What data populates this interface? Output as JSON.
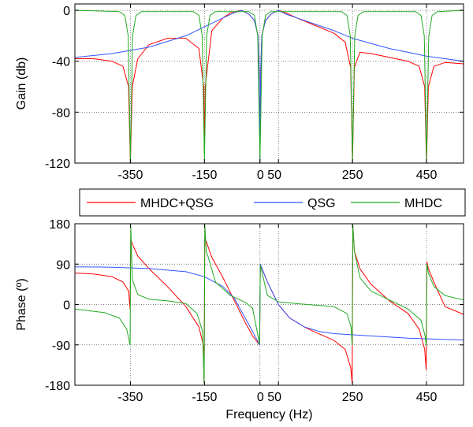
{
  "chart_data": [
    {
      "type": "line",
      "ylabel": "Gain (db)",
      "xlabel": "",
      "xlim": [
        -500,
        550
      ],
      "ylim": [
        -120,
        5
      ],
      "xticks": [
        -350,
        -150,
        0,
        50,
        250,
        450
      ],
      "xtick_labels": [
        "-350",
        "-150",
        "0 50",
        "",
        "250",
        "450"
      ],
      "yticks": [
        0,
        -40,
        -80,
        -120
      ],
      "ytick_labels": [
        "0",
        "-40",
        "-80",
        "-120"
      ],
      "grid": true,
      "series": [
        {
          "name": "MHDC+QSG",
          "color": "#ff0000",
          "x": [
            -500,
            -450,
            -400,
            -370,
            -355,
            -350,
            -345,
            -330,
            -300,
            -250,
            -200,
            -165,
            -152,
            -150,
            -148,
            -130,
            -100,
            -80,
            -50,
            -30,
            -15,
            -5,
            -2,
            0,
            2,
            5,
            15,
            30,
            50,
            70,
            100,
            150,
            200,
            230,
            245,
            250,
            255,
            270,
            300,
            350,
            400,
            430,
            445,
            450,
            455,
            470,
            500,
            550
          ],
          "y": [
            -38,
            -38,
            -40,
            -44,
            -60,
            -120,
            -60,
            -38,
            -27,
            -22,
            -22,
            -30,
            -60,
            -110,
            -60,
            -16,
            -6,
            -2,
            0,
            -3,
            -8,
            -20,
            -48,
            -120,
            -48,
            -20,
            -8,
            -3,
            0,
            -2,
            -6,
            -12,
            -18,
            -25,
            -45,
            -120,
            -45,
            -33,
            -34,
            -37,
            -40,
            -44,
            -60,
            -120,
            -60,
            -44,
            -41,
            -42
          ]
        },
        {
          "name": "QSG",
          "color": "#3355ff",
          "x": [
            -500,
            -400,
            -300,
            -200,
            -150,
            -100,
            -70,
            -50,
            -30,
            -15,
            -5,
            -2,
            0,
            2,
            5,
            15,
            30,
            50,
            70,
            100,
            150,
            200,
            250,
            300,
            350,
            400,
            450,
            500,
            550
          ],
          "y": [
            -37,
            -34,
            -29,
            -20,
            -13,
            -6,
            -2,
            0,
            -3,
            -8,
            -20,
            -48,
            -120,
            -48,
            -20,
            -8,
            -3,
            0,
            -3,
            -6,
            -11,
            -16,
            -22,
            -26,
            -30,
            -33,
            -36,
            -38,
            -40
          ]
        },
        {
          "name": "MHDC",
          "color": "#22aa22",
          "x": [
            -500,
            -380,
            -365,
            -356,
            -350,
            -344,
            -335,
            -320,
            -180,
            -165,
            -156,
            -150,
            -144,
            -135,
            -120,
            -30,
            -15,
            -6,
            0,
            6,
            15,
            30,
            220,
            235,
            244,
            250,
            256,
            265,
            280,
            420,
            435,
            444,
            450,
            456,
            465,
            480,
            550
          ],
          "y": [
            0,
            -1,
            -4,
            -20,
            -118,
            -20,
            -4,
            -1,
            -1,
            -4,
            -20,
            -118,
            -20,
            -4,
            -1,
            -1,
            -4,
            -20,
            -118,
            -20,
            -4,
            -1,
            -1,
            -4,
            -20,
            -118,
            -20,
            -4,
            -1,
            -1,
            -4,
            -20,
            -118,
            -20,
            -4,
            -1,
            0
          ]
        }
      ]
    },
    {
      "type": "line",
      "ylabel": "Phase (º)",
      "xlabel": "Frequency (Hz)",
      "xlim": [
        -500,
        550
      ],
      "ylim": [
        -180,
        180
      ],
      "xticks": [
        -350,
        -150,
        0,
        50,
        250,
        450
      ],
      "xtick_labels": [
        "-350",
        "-150",
        "0 50",
        "",
        "250",
        "450"
      ],
      "yticks": [
        180,
        90,
        0,
        -90,
        -180
      ],
      "ytick_labels": [
        "180",
        "90",
        "0",
        "-90",
        "-180"
      ],
      "grid": true,
      "series": [
        {
          "name": "MHDC+QSG",
          "color": "#ff0000",
          "x": [
            -500,
            -450,
            -400,
            -370,
            -355,
            -351,
            -349,
            -345,
            -330,
            -300,
            -250,
            -200,
            -165,
            -153,
            -151,
            -149,
            -145,
            -130,
            -100,
            -70,
            -40,
            -20,
            -1,
            1,
            20,
            50,
            80,
            120,
            150,
            200,
            230,
            245,
            249,
            251,
            255,
            270,
            300,
            350,
            400,
            430,
            445,
            449,
            451,
            455,
            470,
            500,
            550
          ],
          "y": [
            70,
            68,
            62,
            50,
            30,
            -10,
            145,
            135,
            108,
            80,
            40,
            -5,
            -50,
            -90,
            -175,
            150,
            140,
            105,
            60,
            10,
            -40,
            -70,
            -90,
            90,
            50,
            0,
            -30,
            -50,
            -62,
            -80,
            -100,
            -140,
            -175,
            175,
            120,
            80,
            45,
            8,
            -20,
            -55,
            -100,
            -145,
            95,
            80,
            50,
            -5,
            -22
          ]
        },
        {
          "name": "QSG",
          "color": "#3355ff",
          "x": [
            -500,
            -400,
            -300,
            -200,
            -150,
            -100,
            -70,
            -40,
            -20,
            -1,
            1,
            20,
            50,
            80,
            120,
            160,
            200,
            300,
            400,
            500,
            550
          ],
          "y": [
            84,
            83,
            80,
            73,
            62,
            40,
            15,
            -30,
            -60,
            -90,
            90,
            50,
            0,
            -30,
            -50,
            -60,
            -65,
            -70,
            -75,
            -78,
            -79
          ]
        },
        {
          "name": "MHDC",
          "color": "#22aa22",
          "x": [
            -500,
            -420,
            -380,
            -360,
            -351,
            -349,
            -345,
            -330,
            -300,
            -250,
            -200,
            -170,
            -155,
            -151,
            -149,
            -145,
            -120,
            -80,
            -40,
            -20,
            -1,
            1,
            20,
            50,
            100,
            200,
            235,
            246,
            249,
            251,
            255,
            270,
            300,
            350,
            400,
            435,
            446,
            449,
            451,
            455,
            470,
            500,
            550
          ],
          "y": [
            -10,
            -18,
            -30,
            -55,
            -90,
            175,
            55,
            22,
            12,
            8,
            2,
            -20,
            -60,
            -175,
            178,
            120,
            50,
            20,
            5,
            -8,
            -88,
            88,
            20,
            6,
            2,
            -5,
            -20,
            -50,
            -90,
            178,
            120,
            60,
            30,
            10,
            -10,
            -35,
            -70,
            -90,
            90,
            70,
            40,
            20,
            10
          ]
        }
      ]
    }
  ],
  "legend": {
    "items": [
      {
        "label": "MHDC+QSG",
        "color": "#ff0000"
      },
      {
        "label": "QSG",
        "color": "#3355ff"
      },
      {
        "label": "MHDC",
        "color": "#22aa22"
      }
    ]
  }
}
